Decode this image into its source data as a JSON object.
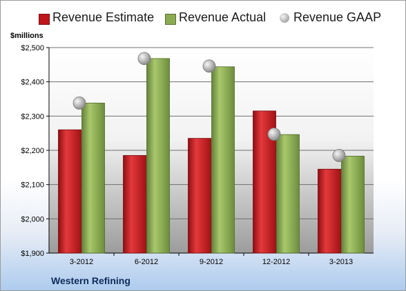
{
  "chart_data": {
    "type": "bar",
    "units_label": "$millions",
    "company": "Western Refining",
    "categories": [
      "3-2012",
      "6-2012",
      "9-2012",
      "12-2012",
      "3-2013"
    ],
    "series": [
      {
        "name": "Revenue Estimate",
        "type": "bar",
        "color": "#c0161b",
        "values": [
          2260,
          2185,
          2235,
          2315,
          2145
        ]
      },
      {
        "name": "Revenue Actual",
        "type": "bar",
        "color": "#8cab50",
        "values": [
          2338,
          2468,
          2444,
          2246,
          2183
        ]
      },
      {
        "name": "Revenue GAAP",
        "type": "scatter",
        "color": "#a8a8a8",
        "values": [
          2338,
          2468,
          2446,
          2247,
          2185
        ]
      }
    ],
    "ylim": [
      1900,
      2500
    ],
    "yticks": [
      1900,
      2000,
      2100,
      2200,
      2300,
      2400,
      2500
    ],
    "ytick_labels": [
      "$1,900",
      "$2,000",
      "$2,100",
      "$2,200",
      "$2,300",
      "$2,400",
      "$2,500"
    ],
    "grid": true,
    "legend_position": "top"
  }
}
